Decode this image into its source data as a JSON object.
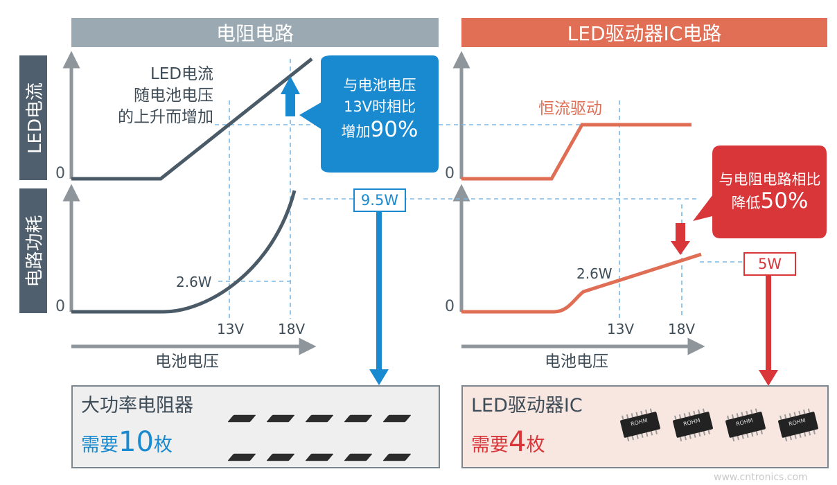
{
  "colors": {
    "gray_header": "#9aa9b2",
    "coral_header": "#e06f55",
    "side_label": "#4f5f6d",
    "resistor_line": "#4a5a66",
    "led_line": "#df6e55",
    "blue": "#1a8ad0",
    "red": "#d9363a",
    "dashed": "#7ab8e6",
    "axis": "#8e969c"
  },
  "left_panel": {
    "header": "电阻电路",
    "annotation_lines": [
      "LED电流",
      "随电池电压",
      "的上升而增加"
    ],
    "callout_lines": [
      "与电池电压",
      "13V时相比"
    ],
    "callout_prefix": "增加",
    "callout_value": "90%",
    "power_box": "9.5W",
    "power_label": "2.6W",
    "zero_top": "0",
    "zero_bottom": "0",
    "tick_13": "13V",
    "tick_18": "18V",
    "x_axis_label": "电池电压",
    "bottom_title": "大功率电阻器",
    "bottom_need_prefix": "需要",
    "bottom_need_count": "10",
    "bottom_need_suffix": "枚"
  },
  "right_panel": {
    "header": "LED驱动器IC电路",
    "const_label": "恒流驱动",
    "callout_line1": "与电阻电路相比",
    "callout_prefix": "降低",
    "callout_value": "50%",
    "power_box": "5W",
    "power_label": "2.6W",
    "zero_top": "0",
    "zero_bottom": "0",
    "tick_13": "13V",
    "tick_18": "18V",
    "x_axis_label": "电池电压",
    "bottom_title": "LED驱动器IC",
    "bottom_need_prefix": "需要",
    "bottom_need_count": "4",
    "bottom_need_suffix": "枚",
    "chip_mark": "ROHM"
  },
  "side_labels": {
    "current": "LED电流",
    "power": "电路功耗"
  },
  "watermark": "www.cntronics.com"
}
